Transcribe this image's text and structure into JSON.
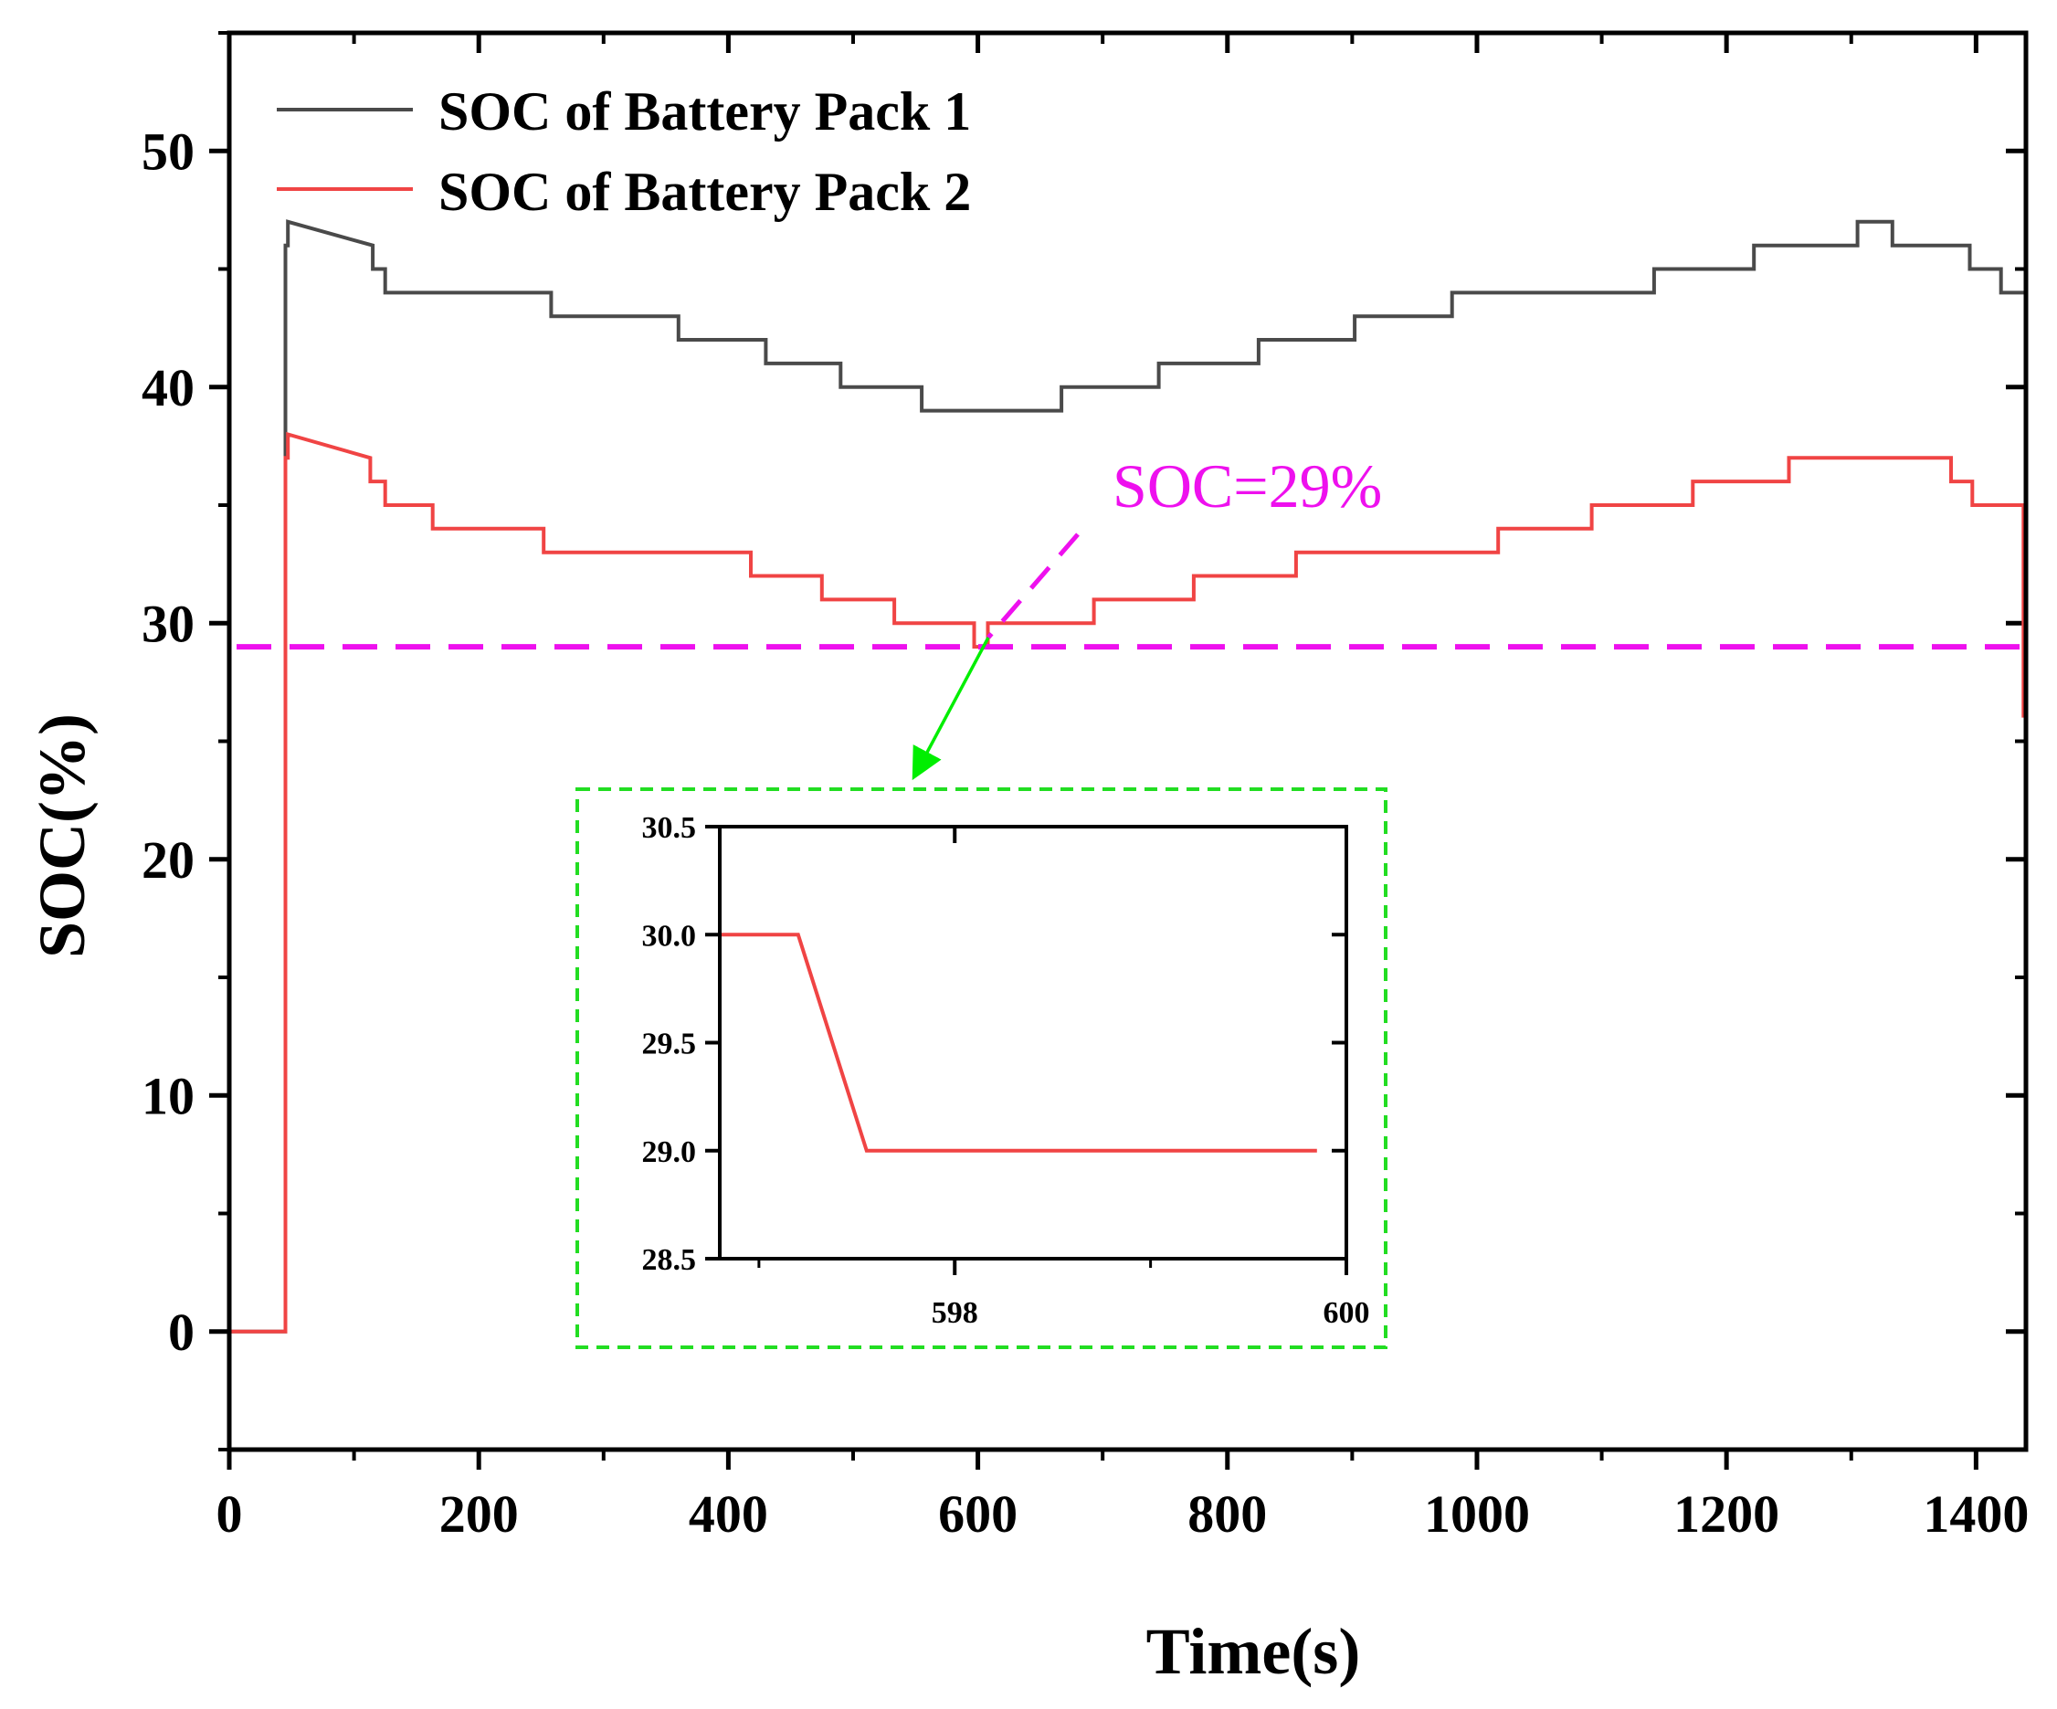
{
  "chart_data": {
    "type": "line",
    "xlabel": "Time(s)",
    "ylabel": "SOC(%)",
    "xlim": [
      0,
      1440
    ],
    "ylim": [
      -5,
      55
    ],
    "x_ticks": [
      0,
      200,
      400,
      600,
      800,
      1000,
      1200,
      1400
    ],
    "y_ticks": [
      0,
      10,
      20,
      30,
      40,
      50
    ],
    "legend_position": "top-left",
    "series": [
      {
        "name": "SOC of Battery Pack 1",
        "color": "#4a4a4a",
        "x": [
          0,
          45,
          45,
          47,
          47,
          115,
          115,
          125,
          125,
          258,
          258,
          360,
          360,
          430,
          430,
          490,
          490,
          555,
          555,
          667,
          667,
          745,
          745,
          825,
          825,
          902,
          902,
          980,
          980,
          1142,
          1142,
          1222,
          1222,
          1305,
          1305,
          1333,
          1333,
          1395,
          1395,
          1420,
          1420,
          1440
        ],
        "y": [
          0,
          0,
          46,
          46,
          47,
          46,
          45,
          45,
          44,
          44,
          43,
          43,
          42,
          42,
          41,
          41,
          40,
          40,
          39,
          39,
          40,
          40,
          41,
          41,
          42,
          42,
          43,
          43,
          44,
          44,
          45,
          45,
          46,
          46,
          47,
          47,
          46,
          46,
          45,
          45,
          44,
          44
        ]
      },
      {
        "name": "SOC of Battery Pack 2",
        "color": "#f04444",
        "x": [
          0,
          45,
          45,
          47,
          47,
          113,
          113,
          125,
          125,
          163,
          163,
          252,
          252,
          418,
          418,
          475,
          475,
          533,
          533,
          597,
          597,
          608,
          608,
          693,
          693,
          773,
          773,
          855,
          855,
          1017,
          1017,
          1092,
          1092,
          1173,
          1173,
          1250,
          1250,
          1380,
          1380,
          1397,
          1397,
          1438,
          1438
        ],
        "y": [
          0,
          0,
          37,
          37,
          38,
          37,
          36,
          36,
          35,
          35,
          34,
          34,
          33,
          33,
          32,
          32,
          31,
          31,
          30,
          30,
          29,
          29,
          30,
          30,
          31,
          31,
          32,
          32,
          33,
          33,
          34,
          34,
          35,
          35,
          36,
          36,
          37,
          37,
          36,
          36,
          35,
          35,
          26
        ]
      }
    ],
    "reference_line": {
      "y": 29,
      "label": "SOC=29%",
      "color": "#ee10ee",
      "style": "dashed"
    },
    "inset": {
      "xlim": [
        596.8,
        600
      ],
      "ylim": [
        28.5,
        30.5
      ],
      "x_ticks": [
        598,
        600
      ],
      "y_ticks": [
        28.5,
        29.0,
        29.5,
        30.0,
        30.5
      ],
      "y_tick_labels": [
        "28.5",
        "29.0",
        "29.5",
        "30.0",
        "30.5"
      ],
      "border_color": "#22dd22",
      "series": {
        "name": "SOC of Battery Pack 2",
        "color": "#f04444",
        "x": [
          596.8,
          597.2,
          597.55,
          599.85
        ],
        "y": [
          30.0,
          30.0,
          29.0,
          29.0
        ]
      }
    }
  }
}
